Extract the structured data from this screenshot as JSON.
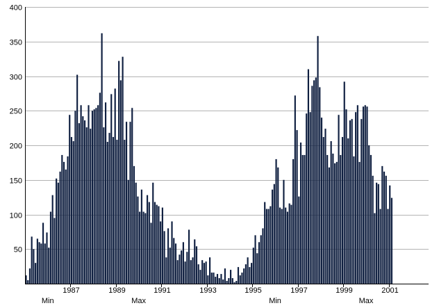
{
  "chart_data": {
    "type": "bar",
    "title": "",
    "xlabel": "",
    "ylabel": "",
    "ylim": [
      0,
      400
    ],
    "y_ticks": [
      50,
      100,
      150,
      200,
      250,
      300,
      350,
      400
    ],
    "x_range": [
      1985.0,
      2002.75
    ],
    "x_tick_years": [
      1987,
      1989,
      1991,
      1993,
      1995,
      1997,
      1999,
      2001
    ],
    "x_tick_labels": [
      "1987",
      "1989",
      "1991",
      "1993",
      "1995",
      "1997",
      "1999",
      "2001"
    ],
    "phase_labels": [
      {
        "text": "Min",
        "year": 1986.0
      },
      {
        "text": "Max",
        "year": 1990.0
      },
      {
        "text": "Min",
        "year": 1996.0
      },
      {
        "text": "Max",
        "year": 2000.0
      }
    ],
    "grid": true,
    "bar_color": "#0f1f40",
    "grid_color": "#b3b3b3",
    "x_start": 1985.0,
    "months_per_step": 1,
    "values": [
      12,
      5,
      22,
      68,
      50,
      30,
      65,
      60,
      58,
      88,
      58,
      74,
      52,
      104,
      128,
      95,
      152,
      146,
      162,
      186,
      176,
      165,
      184,
      244,
      212,
      206,
      250,
      302,
      232,
      258,
      242,
      236,
      226,
      258,
      224,
      250,
      252,
      254,
      258,
      276,
      362,
      226,
      262,
      205,
      218,
      274,
      212,
      282,
      208,
      322,
      294,
      328,
      208,
      234,
      150,
      234,
      254,
      170,
      146,
      126,
      104,
      136,
      104,
      102,
      128,
      118,
      88,
      146,
      118,
      114,
      112,
      90,
      110,
      76,
      38,
      80,
      52,
      90,
      66,
      58,
      34,
      42,
      48,
      60,
      32,
      46,
      78,
      34,
      38,
      64,
      54,
      28,
      20,
      34,
      30,
      32,
      12,
      38,
      16,
      16,
      10,
      14,
      8,
      14,
      6,
      22,
      4,
      8,
      20,
      8,
      2,
      4,
      24,
      12,
      16,
      22,
      28,
      38,
      24,
      30,
      52,
      70,
      44,
      60,
      70,
      80,
      118,
      108,
      108,
      112,
      136,
      144,
      180,
      168,
      110,
      108,
      150,
      110,
      104,
      116,
      114,
      180,
      272,
      222,
      126,
      204,
      186,
      186,
      246,
      310,
      248,
      286,
      294,
      298,
      358,
      284,
      240,
      212,
      224,
      186,
      168,
      206,
      188,
      174,
      176,
      244,
      186,
      212,
      292,
      252,
      210,
      236,
      238,
      184,
      248,
      258,
      176,
      238,
      256,
      258,
      256,
      200,
      186,
      156,
      102,
      146,
      144,
      108,
      170,
      162,
      156,
      108,
      142,
      124
    ]
  }
}
